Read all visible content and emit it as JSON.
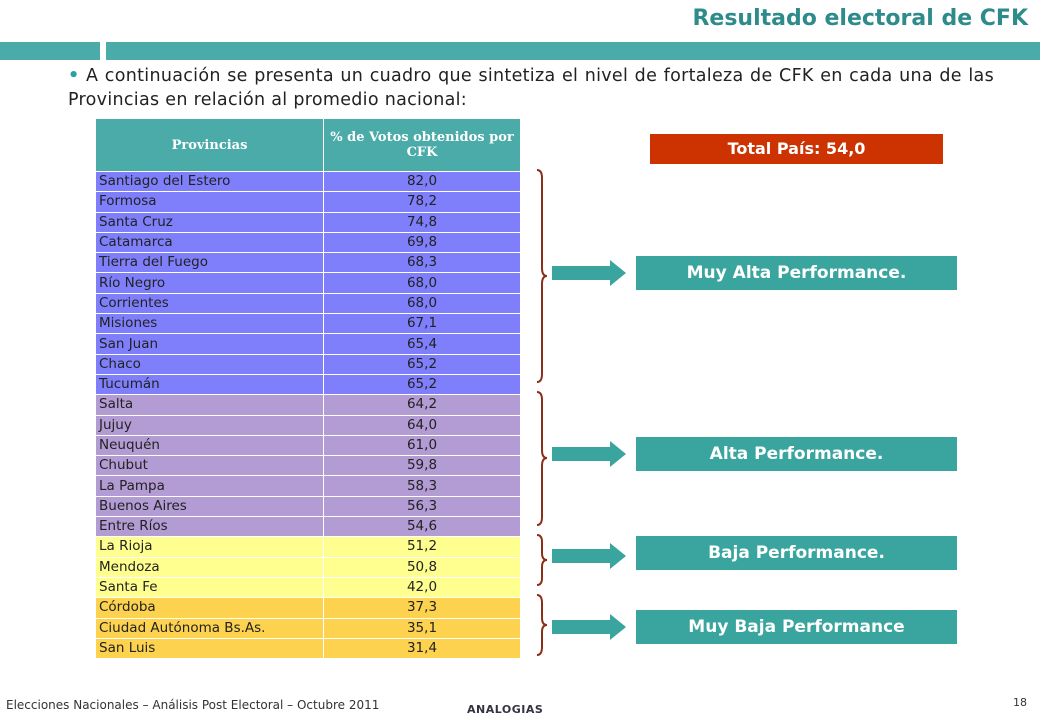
{
  "header": {
    "title": "Resultado electoral de CFK"
  },
  "intro": {
    "bullet": "•",
    "text": "A continuación se presenta un cuadro que sintetiza el nivel de fortaleza de CFK en cada una de las Provincias en relación al promedio nacional:"
  },
  "table": {
    "headers": [
      "Provincias",
      "% de Votos obtenidos por CFK"
    ],
    "rows": [
      {
        "province": "Santiago del Estero",
        "value": "82,0",
        "group": "g1"
      },
      {
        "province": "Formosa",
        "value": "78,2",
        "group": "g1"
      },
      {
        "province": "Santa Cruz",
        "value": "74,8",
        "group": "g1"
      },
      {
        "province": "Catamarca",
        "value": "69,8",
        "group": "g1"
      },
      {
        "province": "Tierra del Fuego",
        "value": "68,3",
        "group": "g1"
      },
      {
        "province": "Río Negro",
        "value": "68,0",
        "group": "g1"
      },
      {
        "province": "Corrientes",
        "value": "68,0",
        "group": "g1"
      },
      {
        "province": "Misiones",
        "value": "67,1",
        "group": "g1"
      },
      {
        "province": "San Juan",
        "value": "65,4",
        "group": "g1"
      },
      {
        "province": "Chaco",
        "value": "65,2",
        "group": "g1"
      },
      {
        "province": "Tucumán",
        "value": "65,2",
        "group": "g1"
      },
      {
        "province": "Salta",
        "value": "64,2",
        "group": "g2"
      },
      {
        "province": "Jujuy",
        "value": "64,0",
        "group": "g2"
      },
      {
        "province": "Neuquén",
        "value": "61,0",
        "group": "g2"
      },
      {
        "province": "Chubut",
        "value": "59,8",
        "group": "g2"
      },
      {
        "province": "La Pampa",
        "value": "58,3",
        "group": "g2"
      },
      {
        "province": "Buenos Aires",
        "value": "56,3",
        "group": "g2"
      },
      {
        "province": "Entre Ríos",
        "value": "54,6",
        "group": "g2"
      },
      {
        "province": "La Rioja",
        "value": "51,2",
        "group": "g3"
      },
      {
        "province": "Mendoza",
        "value": "50,8",
        "group": "g3"
      },
      {
        "province": "Santa Fe",
        "value": "42,0",
        "group": "g3"
      },
      {
        "province": "Córdoba",
        "value": "37,3",
        "group": "g4"
      },
      {
        "province": "Ciudad Autónoma Bs.As.",
        "value": "35,1",
        "group": "g4"
      },
      {
        "province": "San Luis",
        "value": "31,4",
        "group": "g4"
      }
    ]
  },
  "total": {
    "label": "Total País: 54,0"
  },
  "categories": [
    {
      "label": "Muy Alta Performance."
    },
    {
      "label": "Alta Performance."
    },
    {
      "label": "Baja Performance."
    },
    {
      "label": "Muy Baja Performance"
    }
  ],
  "colors": {
    "teal": "#4aaba8",
    "very_high_rows": "#7f7ffb",
    "high_rows": "#b39bd4",
    "low_rows": "#ffff8f",
    "very_low_rows": "#fdd24f",
    "total_box": "#cc3300",
    "arrow": "#3aa59f",
    "brace": "#8b2e1a"
  },
  "footer": {
    "text": "Elecciones Nacionales – Análisis Post Electoral – Octubre 2011",
    "brand": "ANALOGIAS",
    "page": "18"
  }
}
